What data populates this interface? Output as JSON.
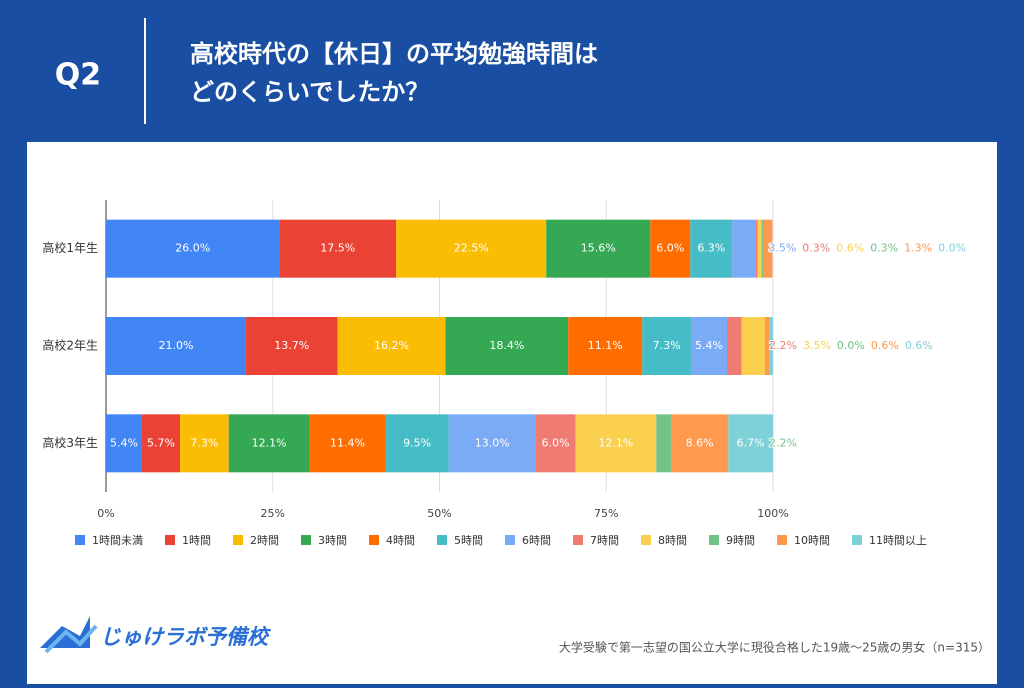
{
  "header": {
    "label": "Q2",
    "title": [
      "高校時代の【休日】の平均勉強時間は",
      "どのくらいでしたか？"
    ]
  },
  "chart_data": {
    "type": "stacked-bar-horizontal",
    "categories": [
      "高校1年生",
      "高校2年生",
      "高校3年生"
    ],
    "xlim": [
      0,
      100
    ],
    "xticks": [
      {
        "value": 0,
        "label": "0%"
      },
      {
        "value": 25,
        "label": "25%"
      },
      {
        "value": 50,
        "label": "50%"
      },
      {
        "value": 75,
        "label": "75%"
      },
      {
        "value": 100,
        "label": "100%"
      }
    ],
    "grid": true,
    "legend": "bottom",
    "series": [
      {
        "name": "1時間未満",
        "color": "#4285f4",
        "values": [
          26.0,
          21.0,
          5.4
        ],
        "value_labels": [
          "26.0%",
          "21.0%",
          "5.4%"
        ]
      },
      {
        "name": "1時間",
        "color": "#ea4335",
        "values": [
          17.5,
          13.7,
          5.7
        ],
        "value_labels": [
          "17.5%",
          "13.7%",
          "5.7%"
        ]
      },
      {
        "name": "2時間",
        "color": "#fbbc04",
        "values": [
          22.5,
          16.2,
          7.3
        ],
        "value_labels": [
          "22.5%",
          "16.2%",
          "7.3%"
        ]
      },
      {
        "name": "3時間",
        "color": "#34a853",
        "values": [
          15.6,
          18.4,
          12.1
        ],
        "value_labels": [
          "15.6%",
          "18.4%",
          "12.1%"
        ]
      },
      {
        "name": "4時間",
        "color": "#ff6d01",
        "values": [
          6.0,
          11.1,
          11.4
        ],
        "value_labels": [
          "6.0%",
          "11.1%",
          "11.4%"
        ]
      },
      {
        "name": "5時間",
        "color": "#46bdc6",
        "values": [
          6.3,
          7.3,
          9.5
        ],
        "value_labels": [
          "6.3%",
          "7.3%",
          "9.5%"
        ]
      },
      {
        "name": "6時間",
        "color": "#7baaf7",
        "values": [
          3.5,
          5.4,
          13.0
        ],
        "value_labels": [
          "3.5%",
          "5.4%",
          "13.0%"
        ]
      },
      {
        "name": "7時間",
        "color": "#f07b72",
        "values": [
          0.3,
          2.2,
          6.0
        ],
        "value_labels": [
          "0.3%",
          "2.2%",
          "6.0%"
        ]
      },
      {
        "name": "8時間",
        "color": "#fcd04f",
        "values": [
          0.6,
          3.5,
          12.1
        ],
        "value_labels": [
          "0.6%",
          "3.5%",
          "12.1%"
        ]
      },
      {
        "name": "9時間",
        "color": "#71c287",
        "values": [
          0.3,
          0.0,
          2.2
        ],
        "value_labels": [
          "0.3%",
          "0.0%",
          "2.2%"
        ]
      },
      {
        "name": "10時間",
        "color": "#ff994d",
        "values": [
          1.3,
          0.6,
          8.6
        ],
        "value_labels": [
          "1.3%",
          "0.6%",
          "8.6%"
        ]
      },
      {
        "name": "11時間以上",
        "color": "#7ed1d7",
        "values": [
          0.0,
          0.6,
          6.7
        ],
        "value_labels": [
          "0.0%",
          "0.6%",
          "6.7%"
        ]
      }
    ]
  },
  "footer": {
    "brand": "じゅけラボ予備校",
    "note": "大学受験で第一志望の国公立大学に現役合格した19歳～25歳の男女（n=315）"
  }
}
